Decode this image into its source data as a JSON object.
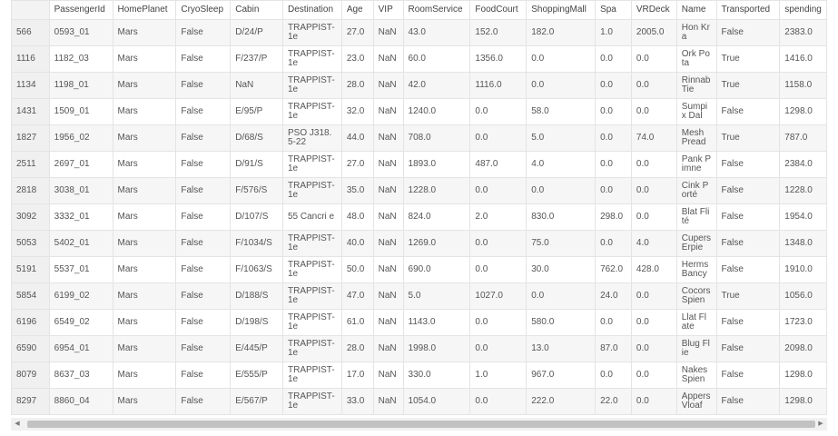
{
  "table": {
    "columns": [
      "",
      "PassengerId",
      "HomePlanet",
      "CryoSleep",
      "Cabin",
      "Destination",
      "Age",
      "VIP",
      "RoomService",
      "FoodCourt",
      "ShoppingMall",
      "Spa",
      "VRDeck",
      "Name",
      "Transported",
      "spending"
    ],
    "rows": [
      [
        "566",
        "0593_01",
        "Mars",
        "False",
        "D/24/P",
        "TRAPPIST-1e",
        "27.0",
        "NaN",
        "43.0",
        "152.0",
        "182.0",
        "1.0",
        "2005.0",
        "Hon Kra",
        "False",
        "2383.0"
      ],
      [
        "1116",
        "1182_03",
        "Mars",
        "False",
        "F/237/P",
        "TRAPPIST-1e",
        "23.0",
        "NaN",
        "60.0",
        "1356.0",
        "0.0",
        "0.0",
        "0.0",
        "Ork Pota",
        "True",
        "1416.0"
      ],
      [
        "1134",
        "1198_01",
        "Mars",
        "False",
        "NaN",
        "TRAPPIST-1e",
        "28.0",
        "NaN",
        "42.0",
        "1116.0",
        "0.0",
        "0.0",
        "0.0",
        "Rinnab Tie",
        "True",
        "1158.0"
      ],
      [
        "1431",
        "1509_01",
        "Mars",
        "False",
        "E/95/P",
        "TRAPPIST-1e",
        "32.0",
        "NaN",
        "1240.0",
        "0.0",
        "58.0",
        "0.0",
        "0.0",
        "Sumpix Dal",
        "False",
        "1298.0"
      ],
      [
        "1827",
        "1956_02",
        "Mars",
        "False",
        "D/68/S",
        "PSO J318.5-22",
        "44.0",
        "NaN",
        "708.0",
        "0.0",
        "5.0",
        "0.0",
        "74.0",
        "Mesh Pread",
        "True",
        "787.0"
      ],
      [
        "2511",
        "2697_01",
        "Mars",
        "False",
        "D/91/S",
        "TRAPPIST-1e",
        "27.0",
        "NaN",
        "1893.0",
        "487.0",
        "4.0",
        "0.0",
        "0.0",
        "Pank Pimne",
        "False",
        "2384.0"
      ],
      [
        "2818",
        "3038_01",
        "Mars",
        "False",
        "F/576/S",
        "TRAPPIST-1e",
        "35.0",
        "NaN",
        "1228.0",
        "0.0",
        "0.0",
        "0.0",
        "0.0",
        "Cink Porté",
        "False",
        "1228.0"
      ],
      [
        "3092",
        "3332_01",
        "Mars",
        "False",
        "D/107/S",
        "55 Cancri e",
        "48.0",
        "NaN",
        "824.0",
        "2.0",
        "830.0",
        "298.0",
        "0.0",
        "Blat Flité",
        "False",
        "1954.0"
      ],
      [
        "5053",
        "5402_01",
        "Mars",
        "False",
        "F/1034/S",
        "TRAPPIST-1e",
        "40.0",
        "NaN",
        "1269.0",
        "0.0",
        "75.0",
        "0.0",
        "4.0",
        "Cupers Erpie",
        "False",
        "1348.0"
      ],
      [
        "5191",
        "5537_01",
        "Mars",
        "False",
        "F/1063/S",
        "TRAPPIST-1e",
        "50.0",
        "NaN",
        "690.0",
        "0.0",
        "30.0",
        "762.0",
        "428.0",
        "Herms Bancy",
        "False",
        "1910.0"
      ],
      [
        "5854",
        "6199_02",
        "Mars",
        "False",
        "D/188/S",
        "TRAPPIST-1e",
        "47.0",
        "NaN",
        "5.0",
        "1027.0",
        "0.0",
        "24.0",
        "0.0",
        "Cocors Spien",
        "True",
        "1056.0"
      ],
      [
        "6196",
        "6549_02",
        "Mars",
        "False",
        "D/198/S",
        "TRAPPIST-1e",
        "61.0",
        "NaN",
        "1143.0",
        "0.0",
        "580.0",
        "0.0",
        "0.0",
        "Llat Flate",
        "False",
        "1723.0"
      ],
      [
        "6590",
        "6954_01",
        "Mars",
        "False",
        "E/445/P",
        "TRAPPIST-1e",
        "28.0",
        "NaN",
        "1998.0",
        "0.0",
        "13.0",
        "87.0",
        "0.0",
        "Blug Flie",
        "False",
        "2098.0"
      ],
      [
        "8079",
        "8637_03",
        "Mars",
        "False",
        "E/555/P",
        "TRAPPIST-1e",
        "17.0",
        "NaN",
        "330.0",
        "1.0",
        "967.0",
        "0.0",
        "0.0",
        "Nakes Spien",
        "False",
        "1298.0"
      ],
      [
        "8297",
        "8860_04",
        "Mars",
        "False",
        "E/567/P",
        "TRAPPIST-1e",
        "33.0",
        "NaN",
        "1054.0",
        "0.0",
        "222.0",
        "22.0",
        "0.0",
        "Appers Vloaf",
        "False",
        "1298.0"
      ]
    ]
  },
  "scrollbar": {
    "left_arrow": "◀",
    "right_arrow": "▶"
  }
}
